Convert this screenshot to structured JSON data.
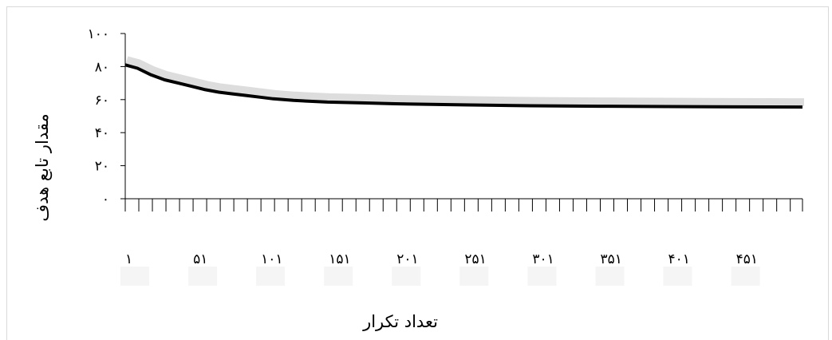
{
  "chart_data": {
    "type": "line",
    "title": "",
    "xlabel": "تعداد تکرار",
    "ylabel": "مقدار تابع هدف",
    "ylim": [
      0,
      100
    ],
    "xlim": [
      1,
      500
    ],
    "y_ticks": [
      0,
      20,
      40,
      60,
      80,
      100
    ],
    "y_tick_labels": [
      "۰",
      "۲۰",
      "۴۰",
      "۶۰",
      "۸۰",
      "۱۰۰"
    ],
    "x_tick_values": [
      1,
      51,
      101,
      151,
      201,
      251,
      301,
      351,
      401,
      451
    ],
    "x_tick_labels": [
      "۱",
      "۵۱",
      "۱۰۱",
      "۱۵۱",
      "۲۰۱",
      "۲۵۱",
      "۳۰۱",
      "۳۵۱",
      "۴۰۱",
      "۴۵۱"
    ],
    "grid": false,
    "series": [
      {
        "color": "#000000",
        "x": [
          1,
          10,
          20,
          30,
          40,
          50,
          60,
          70,
          80,
          90,
          100,
          110,
          125,
          150,
          175,
          200,
          250,
          300,
          350,
          400,
          450,
          500
        ],
        "values": [
          81,
          79,
          75,
          72,
          70,
          68,
          66,
          64.5,
          63.5,
          62.5,
          61.5,
          60.5,
          59.5,
          58.5,
          58,
          57.5,
          56.8,
          56.3,
          56,
          55.8,
          55.6,
          55.5
        ]
      }
    ]
  }
}
